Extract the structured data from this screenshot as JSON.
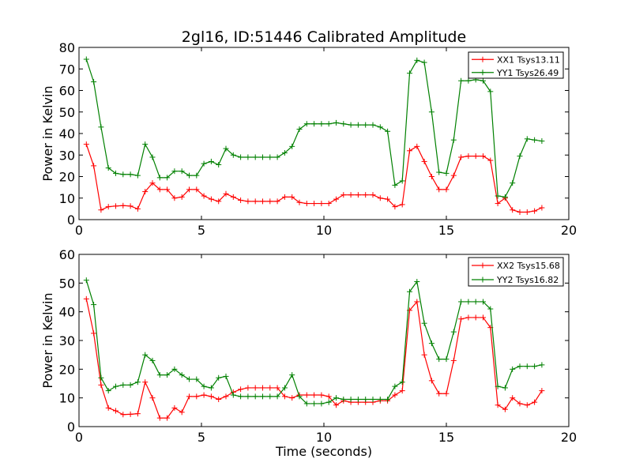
{
  "figure": {
    "title": "2gl16, ID:51446 Calibrated Amplitude"
  },
  "chart_data": [
    {
      "type": "line",
      "title": "2gl16, ID:51446 Calibrated Amplitude",
      "xlabel": "",
      "ylabel": "Power in Kelvin",
      "xlim": [
        0,
        20
      ],
      "ylim": [
        0,
        80
      ],
      "xticks": [
        0,
        5,
        10,
        15,
        20
      ],
      "yticks": [
        0,
        10,
        20,
        30,
        40,
        50,
        60,
        70,
        80
      ],
      "legend_position": "top-right",
      "grid": false,
      "series": [
        {
          "name": "XX1 Tsys13.11",
          "color": "#ff0000",
          "x": [
            0.3,
            0.6,
            0.9,
            1.2,
            1.5,
            1.8,
            2.1,
            2.4,
            2.7,
            3.0,
            3.3,
            3.6,
            3.9,
            4.2,
            4.5,
            4.8,
            5.1,
            5.4,
            5.7,
            6.0,
            6.3,
            6.6,
            6.9,
            7.2,
            7.5,
            7.8,
            8.1,
            8.4,
            8.7,
            9.0,
            9.3,
            9.6,
            9.9,
            10.2,
            10.5,
            10.8,
            11.1,
            11.4,
            11.7,
            12.0,
            12.3,
            12.6,
            12.9,
            13.2,
            13.5,
            13.8,
            14.1,
            14.4,
            14.7,
            15.0,
            15.3,
            15.6,
            15.9,
            16.2,
            16.5,
            16.8,
            17.1,
            17.4,
            17.7,
            18.0,
            18.3,
            18.6,
            18.9
          ],
          "y": [
            35,
            25,
            4.5,
            6,
            6.3,
            6.5,
            6.3,
            5,
            13,
            17,
            14,
            14,
            10,
            10.5,
            14,
            14,
            11,
            9.5,
            8.5,
            12,
            10.5,
            9,
            8.5,
            8.5,
            8.5,
            8.5,
            8.5,
            10.5,
            10.5,
            8,
            7.5,
            7.5,
            7.5,
            7.5,
            9.5,
            11.5,
            11.5,
            11.5,
            11.5,
            11.5,
            10,
            9.5,
            6,
            7,
            32,
            34,
            27,
            20,
            14,
            14,
            20.5,
            29,
            29.5,
            29.5,
            29.5,
            27.5,
            7.5,
            10,
            4.5,
            3.5,
            3.5,
            4,
            5.5
          ]
        },
        {
          "name": "YY1 Tsys26.49",
          "color": "#008000",
          "x": [
            0.3,
            0.6,
            0.9,
            1.2,
            1.5,
            1.8,
            2.1,
            2.4,
            2.7,
            3.0,
            3.3,
            3.6,
            3.9,
            4.2,
            4.5,
            4.8,
            5.1,
            5.4,
            5.7,
            6.0,
            6.3,
            6.6,
            6.9,
            7.2,
            7.5,
            7.8,
            8.1,
            8.4,
            8.7,
            9.0,
            9.3,
            9.6,
            9.9,
            10.2,
            10.5,
            10.8,
            11.1,
            11.4,
            11.7,
            12.0,
            12.3,
            12.6,
            12.9,
            13.2,
            13.5,
            13.8,
            14.1,
            14.4,
            14.7,
            15.0,
            15.3,
            15.6,
            15.9,
            16.2,
            16.5,
            16.8,
            17.1,
            17.4,
            17.7,
            18.0,
            18.3,
            18.6,
            18.9
          ],
          "y": [
            74.5,
            64,
            43,
            24,
            21.5,
            21,
            21,
            20.5,
            35,
            29,
            19.5,
            19.5,
            22.5,
            22.5,
            20.5,
            20.5,
            26,
            27,
            25.5,
            33,
            30,
            29,
            29,
            29,
            29,
            29,
            29,
            31,
            34,
            42,
            44.5,
            44.5,
            44.5,
            44.5,
            45,
            44.5,
            44,
            44,
            44,
            44,
            43,
            41,
            16,
            18,
            68,
            74,
            73,
            50,
            22,
            21.5,
            37,
            64.5,
            64.5,
            65,
            64.5,
            59.5,
            11,
            10.5,
            17,
            29.5,
            37.5,
            37,
            36.5
          ]
        }
      ]
    },
    {
      "type": "line",
      "title": "",
      "xlabel": "Time (seconds)",
      "ylabel": "Power in Kelvin",
      "xlim": [
        0,
        20
      ],
      "ylim": [
        0,
        60
      ],
      "xticks": [
        0,
        5,
        10,
        15,
        20
      ],
      "yticks": [
        0,
        10,
        20,
        30,
        40,
        50,
        60
      ],
      "legend_position": "top-right",
      "grid": false,
      "series": [
        {
          "name": "XX2 Tsys15.68",
          "color": "#ff0000",
          "x": [
            0.3,
            0.6,
            0.9,
            1.2,
            1.5,
            1.8,
            2.1,
            2.4,
            2.7,
            3.0,
            3.3,
            3.6,
            3.9,
            4.2,
            4.5,
            4.8,
            5.1,
            5.4,
            5.7,
            6.0,
            6.3,
            6.6,
            6.9,
            7.2,
            7.5,
            7.8,
            8.1,
            8.4,
            8.7,
            9.0,
            9.3,
            9.6,
            9.9,
            10.2,
            10.5,
            10.8,
            11.1,
            11.4,
            11.7,
            12.0,
            12.3,
            12.6,
            12.9,
            13.2,
            13.5,
            13.8,
            14.1,
            14.4,
            14.7,
            15.0,
            15.3,
            15.6,
            15.9,
            16.2,
            16.5,
            16.8,
            17.1,
            17.4,
            17.7,
            18.0,
            18.3,
            18.6,
            18.9
          ],
          "y": [
            44.5,
            32.5,
            14.5,
            6.5,
            5.5,
            4.2,
            4.3,
            4.5,
            15.5,
            10,
            3,
            3,
            6.5,
            5,
            10.5,
            10.5,
            11,
            10.5,
            9.5,
            10.5,
            12,
            13,
            13.5,
            13.5,
            13.5,
            13.5,
            13.5,
            10.5,
            10,
            11,
            11,
            11,
            11,
            10.5,
            7.5,
            9,
            8.5,
            8.5,
            8.5,
            8.5,
            9,
            9,
            11,
            12.5,
            40.5,
            43.5,
            25,
            16,
            11.5,
            11.5,
            23,
            37.5,
            38,
            38,
            38,
            34.5,
            7.5,
            6,
            10,
            8,
            7.5,
            8.5,
            12.5
          ]
        },
        {
          "name": "YY2 Tsys16.82",
          "color": "#008000",
          "x": [
            0.3,
            0.6,
            0.9,
            1.2,
            1.5,
            1.8,
            2.1,
            2.4,
            2.7,
            3.0,
            3.3,
            3.6,
            3.9,
            4.2,
            4.5,
            4.8,
            5.1,
            5.4,
            5.7,
            6.0,
            6.3,
            6.6,
            6.9,
            7.2,
            7.5,
            7.8,
            8.1,
            8.4,
            8.7,
            9.0,
            9.3,
            9.6,
            9.9,
            10.2,
            10.5,
            10.8,
            11.1,
            11.4,
            11.7,
            12.0,
            12.3,
            12.6,
            12.9,
            13.2,
            13.5,
            13.8,
            14.1,
            14.4,
            14.7,
            15.0,
            15.3,
            15.6,
            15.9,
            16.2,
            16.5,
            16.8,
            17.1,
            17.4,
            17.7,
            18.0,
            18.3,
            18.6,
            18.9
          ],
          "y": [
            51,
            42.5,
            17,
            12.5,
            14,
            14.5,
            14.5,
            15.5,
            25,
            23,
            18,
            18,
            20,
            18,
            16.5,
            16.5,
            14,
            13.5,
            17,
            17.5,
            11,
            10.5,
            10.5,
            10.5,
            10.5,
            10.5,
            10.5,
            13.5,
            18,
            10.5,
            8,
            8,
            8,
            8.5,
            10,
            9.5,
            9.5,
            9.5,
            9.5,
            9.5,
            9.5,
            9.5,
            14,
            15.5,
            47,
            50.5,
            36,
            29,
            23.5,
            23.5,
            33,
            43.5,
            43.5,
            43.5,
            43.5,
            41,
            14,
            13.5,
            20,
            21,
            21,
            21,
            21.5
          ]
        }
      ]
    }
  ]
}
